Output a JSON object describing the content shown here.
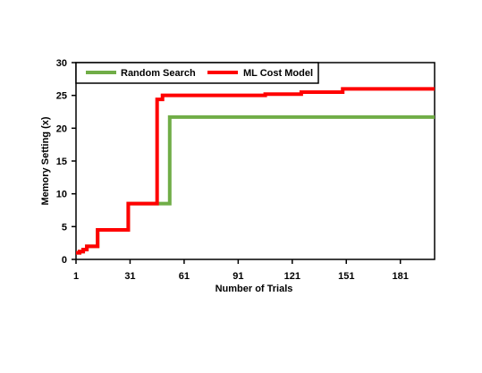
{
  "chart_data": {
    "type": "line",
    "title": "",
    "xlabel": "Number of Trials",
    "ylabel": "Memory Setting (x)",
    "xlim": [
      1,
      200
    ],
    "ylim": [
      0,
      30
    ],
    "x_ticks": [
      1,
      31,
      61,
      91,
      121,
      151,
      181
    ],
    "y_ticks": [
      0,
      5,
      10,
      15,
      20,
      25,
      30
    ],
    "grid": false,
    "legend_position": "top",
    "series": [
      {
        "name": "Random Search",
        "color": "#70ad47",
        "step": true,
        "points": [
          [
            1,
            1
          ],
          [
            3,
            1.2
          ],
          [
            5,
            1.5
          ],
          [
            7,
            2
          ],
          [
            12,
            2
          ],
          [
            13,
            4.5
          ],
          [
            29,
            4.5
          ],
          [
            30,
            8.5
          ],
          [
            52,
            8.5
          ],
          [
            53,
            21.7
          ],
          [
            200,
            21.7
          ]
        ]
      },
      {
        "name": "ML Cost Model",
        "color": "#ff0000",
        "step": true,
        "points": [
          [
            1,
            1
          ],
          [
            3,
            1.2
          ],
          [
            5,
            1.5
          ],
          [
            7,
            2
          ],
          [
            12,
            2
          ],
          [
            13,
            4.5
          ],
          [
            29,
            4.5
          ],
          [
            30,
            8.5
          ],
          [
            45,
            8.5
          ],
          [
            46,
            24.4
          ],
          [
            48,
            24.4
          ],
          [
            49,
            25
          ],
          [
            105,
            25
          ],
          [
            106,
            25.2
          ],
          [
            125,
            25.2
          ],
          [
            126,
            25.5
          ],
          [
            148,
            25.5
          ],
          [
            149,
            26
          ],
          [
            200,
            26
          ]
        ]
      }
    ]
  }
}
